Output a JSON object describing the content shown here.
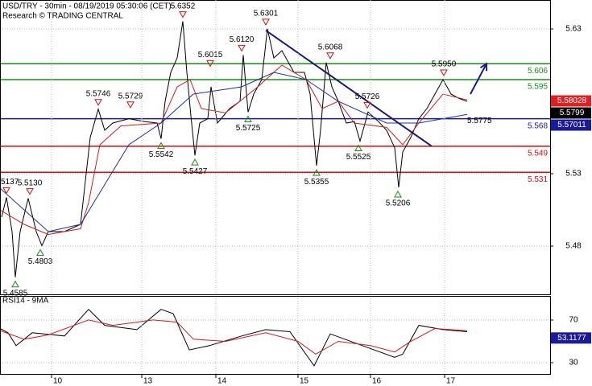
{
  "chart_data": [
    {
      "type": "line",
      "title": "USD/TRY - 30min - 08/19/2019 05:30:06 (CET)",
      "subtitle": "Research © TRADING CENTRAL",
      "xlim": [
        0,
        341.5
      ],
      "ylim": [
        5.4467,
        5.65
      ],
      "yticks": [
        5.48,
        5.53,
        5.63
      ],
      "grid": true,
      "lines": [
        {
          "color": "#000000",
          "x": [
            1,
            4,
            7.5,
            9.5,
            12.5,
            17.5,
            22.5,
            26,
            30,
            40,
            50,
            52.5,
            56,
            61,
            65,
            70,
            80,
            90,
            97.5,
            100,
            102.5,
            106,
            110,
            113.5,
            116,
            118.5,
            121,
            124,
            129,
            131,
            135,
            142.5,
            149,
            151,
            154,
            157.5,
            162.5,
            166,
            170,
            175,
            182.5,
            189,
            192.5,
            196.5,
            199,
            202.5,
            206,
            210,
            215,
            220,
            223.5,
            228.5,
            235,
            240,
            245,
            247.5,
            250,
            255,
            260,
            265,
            270,
            275,
            280,
            285,
            290
          ],
          "values": [
            5.5,
            5.5137,
            5.49,
            5.4585,
            5.49,
            5.513,
            5.49,
            5.4803,
            5.49,
            5.49,
            5.495,
            5.52,
            5.555,
            5.5746,
            5.56,
            5.565,
            5.568,
            5.566,
            5.565,
            5.5542,
            5.58,
            5.6,
            5.61,
            5.6352,
            5.6,
            5.57,
            5.5427,
            5.565,
            5.568,
            5.59,
            5.565,
            5.575,
            5.58,
            5.612,
            5.5725,
            5.585,
            5.595,
            5.6301,
            5.61,
            5.615,
            5.6,
            5.6,
            5.585,
            5.5355,
            5.56,
            5.6068,
            5.59,
            5.58,
            5.565,
            5.566,
            5.5525,
            5.5726,
            5.566,
            5.56,
            5.548,
            5.5206,
            5.545,
            5.555,
            5.568,
            5.575,
            5.585,
            5.595,
            5.585,
            5.582,
            5.5799
          ]
        },
        {
          "color": "#cc2020",
          "x": [
            0,
            15,
            30,
            50,
            55,
            62,
            75,
            100,
            110,
            118,
            125,
            140,
            160,
            175,
            190,
            200,
            210,
            220,
            240,
            250,
            260,
            275,
            290
          ],
          "values": [
            5.505,
            5.495,
            5.488,
            5.492,
            5.51,
            5.55,
            5.563,
            5.565,
            5.59,
            5.595,
            5.575,
            5.572,
            5.59,
            5.605,
            5.595,
            5.575,
            5.58,
            5.565,
            5.562,
            5.55,
            5.565,
            5.585,
            5.581
          ]
        },
        {
          "color": "#2030a0",
          "x": [
            0,
            30,
            50,
            80,
            100,
            120,
            150,
            170,
            190,
            210,
            240,
            260,
            290
          ],
          "values": [
            5.52,
            5.49,
            5.495,
            5.55,
            5.565,
            5.585,
            5.59,
            5.6,
            5.595,
            5.58,
            5.565,
            5.565,
            5.571
          ]
        }
      ],
      "levels": {
        "values": [
          5.606,
          5.595,
          5.568,
          5.549,
          5.531
        ],
        "colors": [
          "#1a8a1a",
          "#1a8a1a",
          "#1a1a9a",
          "#d01010",
          "#d01010"
        ]
      },
      "pivots": {
        "x": [
          4,
          18.5,
          9.5,
          25,
          61,
          81,
          100,
          113.5,
          121,
          130.5,
          150,
          154,
          165,
          196.5,
          205,
          222.5,
          228,
          247,
          275.5
        ],
        "values": [
          5.5137,
          5.513,
          5.4585,
          5.4803,
          5.5746,
          5.5729,
          5.5542,
          5.6352,
          5.5427,
          5.6015,
          5.612,
          5.5725,
          5.6301,
          5.5355,
          5.6068,
          5.5525,
          5.5726,
          5.5206,
          5.595
        ],
        "value_labels": [
          "5.5137",
          "5.5130",
          "5.4585",
          "5.4803",
          "5.5746",
          "5.5729",
          "5.5542",
          "5.6352",
          "5.5427",
          "5.6015",
          "5.6120",
          "5.5725",
          "5.6301",
          "5.5355",
          "5.6068",
          "5.5525",
          "5.5726",
          "5.5206",
          "5.5950"
        ],
        "kinds": [
          "high",
          "high",
          "low",
          "low",
          "high",
          "high",
          "low",
          "high",
          "low",
          "high",
          "high",
          "low",
          "high",
          "low",
          "high",
          "low",
          "high",
          "low",
          "high"
        ],
        "colors": {
          "high": "#d01010",
          "low": "#1a8a1a"
        }
      },
      "annotations": [
        {
          "x": 290,
          "value": 5.5775
        }
      ],
      "trendline": {
        "x": [
          165,
          268
        ],
        "values": [
          5.629,
          5.549
        ],
        "color": "#1a1a6e"
      },
      "arrow": {
        "x": [
          292,
          302
        ],
        "values": [
          5.585,
          5.606
        ],
        "color": "#1a1a8e"
      },
      "price_tags": {
        "values": [
          5.58028,
          5.5799,
          5.57011
        ],
        "colors": [
          "#e02020",
          "#000000",
          "#1a1a9a"
        ]
      }
    },
    {
      "type": "line",
      "title": "RSI14 - 9MA",
      "xlim": [
        0,
        341.5
      ],
      "ylim": [
        19.4,
        92.6
      ],
      "yticks": [
        30,
        70
      ],
      "grid": true,
      "xticks": [
        {
          "value": 32,
          "label": "10"
        },
        {
          "value": 88,
          "label": "13"
        },
        {
          "value": 134,
          "label": "14"
        },
        {
          "value": 185,
          "label": "15"
        },
        {
          "value": 230,
          "label": "16"
        },
        {
          "value": 276,
          "label": "17"
        }
      ],
      "lines": [
        {
          "color": "#000000",
          "x": [
            0,
            5,
            10,
            20,
            40,
            55,
            65,
            85,
            100,
            107.5,
            117.5,
            130,
            150,
            165,
            180,
            195,
            205,
            225,
            245,
            250,
            260,
            275,
            290
          ],
          "values": [
            62,
            58,
            46,
            58,
            55,
            80,
            65,
            61,
            80,
            76,
            42,
            46,
            55,
            61,
            59,
            27,
            57,
            46,
            35,
            38,
            65,
            61,
            59
          ]
        },
        {
          "color": "#cc2020",
          "x": [
            0,
            15,
            30,
            55,
            70,
            95,
            110,
            120,
            140,
            165,
            185,
            196,
            210,
            230,
            245,
            255,
            270,
            290
          ],
          "values": [
            60,
            52,
            56,
            70,
            65,
            70,
            68,
            52,
            50,
            58,
            50,
            38,
            50,
            46,
            40,
            50,
            62,
            60
          ]
        }
      ],
      "price_tags": {
        "values": [
          53.1177
        ],
        "colors": [
          "#1a1a9a"
        ]
      }
    }
  ]
}
